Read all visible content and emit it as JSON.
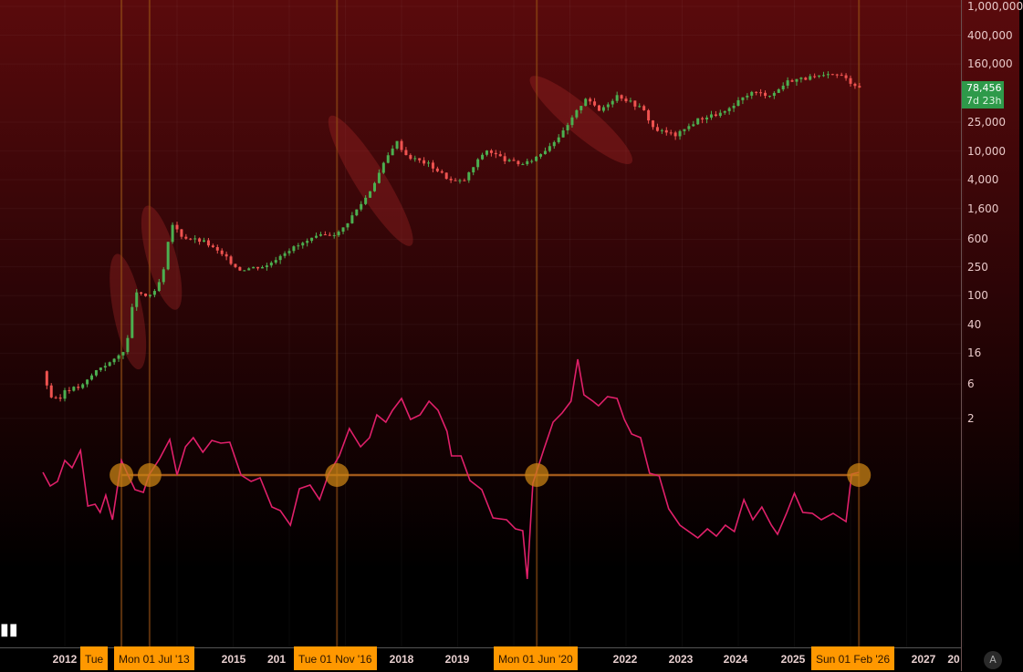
{
  "price_axis": {
    "ticks": [
      "1,000,000",
      "400,000",
      "160,000",
      "25,000",
      "10,000",
      "4,000",
      "1,600",
      "600",
      "250",
      "100",
      "40",
      "16",
      "6",
      "2"
    ],
    "tick_values": [
      1000000,
      400000,
      160000,
      25000,
      10000,
      4000,
      1600,
      600,
      250,
      100,
      40,
      16,
      6,
      2
    ]
  },
  "last_price": {
    "value": "78,456",
    "countdown": "7d 23h",
    "color": "#2e9a4a"
  },
  "time_axis": {
    "years": [
      {
        "label": "2012",
        "year": 2012
      },
      {
        "label": "2015",
        "year": 2015
      },
      {
        "label": "201",
        "year": 2016.85
      },
      {
        "label": "2018",
        "year": 2018
      },
      {
        "label": "2019",
        "year": 2019
      },
      {
        "label": "2022",
        "year": 2022
      },
      {
        "label": "2023",
        "year": 2023
      },
      {
        "label": "2024",
        "year": 2024
      },
      {
        "label": "2025",
        "year": 2025
      },
      {
        "label": "2027",
        "year": 2027
      },
      {
        "label": "20",
        "year": 2028
      }
    ],
    "markers": [
      {
        "label": "Tue",
        "year": 2013.01
      },
      {
        "label": "Mon 01 Jul '13",
        "year": 2013.5
      },
      {
        "label": "Tue 01 Nov '16",
        "year": 2016.84
      },
      {
        "label": "Mon 01 Jun '20",
        "year": 2020.41
      },
      {
        "label": "Sun 01 Feb '26",
        "year": 2026.08
      }
    ]
  },
  "auto_button": "A",
  "logo": "17",
  "chart_data": {
    "type": "candlestick+line",
    "title": "",
    "yscale": "log",
    "ylim": [
      1.3,
      1000000
    ],
    "xlim": [
      2011.3,
      2028.4
    ],
    "price_path": [
      [
        2011.6,
        9
      ],
      [
        2011.75,
        4
      ],
      [
        2011.9,
        3.5
      ],
      [
        2012.0,
        5
      ],
      [
        2012.3,
        5.5
      ],
      [
        2012.6,
        10
      ],
      [
        2012.9,
        13
      ],
      [
        2013.1,
        20
      ],
      [
        2013.25,
        120
      ],
      [
        2013.4,
        95
      ],
      [
        2013.6,
        110
      ],
      [
        2013.75,
        200
      ],
      [
        2013.9,
        1000
      ],
      [
        2014.1,
        650
      ],
      [
        2014.5,
        550
      ],
      [
        2014.9,
        320
      ],
      [
        2015.1,
        230
      ],
      [
        2015.6,
        260
      ],
      [
        2015.9,
        400
      ],
      [
        2016.5,
        650
      ],
      [
        2016.9,
        750
      ],
      [
        2017.4,
        2500
      ],
      [
        2017.9,
        14000
      ],
      [
        2018.1,
        8500
      ],
      [
        2018.5,
        6500
      ],
      [
        2018.9,
        3800
      ],
      [
        2019.1,
        3800
      ],
      [
        2019.5,
        10500
      ],
      [
        2019.9,
        7200
      ],
      [
        2020.2,
        6500
      ],
      [
        2020.5,
        9500
      ],
      [
        2020.9,
        19000
      ],
      [
        2021.3,
        58000
      ],
      [
        2021.5,
        35000
      ],
      [
        2021.85,
        60000
      ],
      [
        2022.3,
        38000
      ],
      [
        2022.5,
        20000
      ],
      [
        2022.9,
        16500
      ],
      [
        2023.3,
        28000
      ],
      [
        2023.8,
        35000
      ],
      [
        2024.2,
        65000
      ],
      [
        2024.6,
        60000
      ],
      [
        2024.9,
        95000
      ],
      [
        2025.1,
        100000
      ],
      [
        2025.4,
        105000
      ],
      [
        2025.8,
        115000
      ],
      [
        2026.0,
        90000
      ],
      [
        2026.15,
        78456
      ]
    ],
    "oscillator": {
      "color": "#e0206a",
      "threshold": 0,
      "points": [
        [
          2011.61,
          3
        ],
        [
          2011.74,
          -12
        ],
        [
          2011.87,
          -7
        ],
        [
          2012.0,
          16
        ],
        [
          2012.13,
          8
        ],
        [
          2012.28,
          27
        ],
        [
          2012.41,
          -34
        ],
        [
          2012.54,
          -32
        ],
        [
          2012.63,
          -41
        ],
        [
          2012.73,
          -22
        ],
        [
          2012.85,
          -49
        ],
        [
          2013.01,
          16
        ],
        [
          2013.12,
          1
        ],
        [
          2013.25,
          -16
        ],
        [
          2013.4,
          -19
        ],
        [
          2013.5,
          0
        ],
        [
          2013.69,
          18
        ],
        [
          2013.87,
          39
        ],
        [
          2014.0,
          0
        ],
        [
          2014.15,
          31
        ],
        [
          2014.29,
          41
        ],
        [
          2014.46,
          25
        ],
        [
          2014.62,
          38
        ],
        [
          2014.78,
          35
        ],
        [
          2014.94,
          36
        ],
        [
          2015.14,
          0
        ],
        [
          2015.32,
          -7
        ],
        [
          2015.48,
          -3
        ],
        [
          2015.69,
          -35
        ],
        [
          2015.84,
          -39
        ],
        [
          2016.02,
          -55
        ],
        [
          2016.18,
          -15
        ],
        [
          2016.37,
          -11
        ],
        [
          2016.54,
          -27
        ],
        [
          2016.7,
          1
        ],
        [
          2016.89,
          21
        ],
        [
          2017.07,
          51
        ],
        [
          2017.27,
          31
        ],
        [
          2017.43,
          41
        ],
        [
          2017.56,
          66
        ],
        [
          2017.72,
          58
        ],
        [
          2017.84,
          71
        ],
        [
          2018.0,
          84
        ],
        [
          2018.16,
          61
        ],
        [
          2018.33,
          66
        ],
        [
          2018.49,
          81
        ],
        [
          2018.65,
          71
        ],
        [
          2018.81,
          48
        ],
        [
          2018.89,
          21
        ],
        [
          2019.06,
          21
        ],
        [
          2019.22,
          -6
        ],
        [
          2019.43,
          -16
        ],
        [
          2019.63,
          -47
        ],
        [
          2019.87,
          -49
        ],
        [
          2020.03,
          -59
        ],
        [
          2020.16,
          -61
        ],
        [
          2020.24,
          -114
        ],
        [
          2020.34,
          -9
        ],
        [
          2020.54,
          29
        ],
        [
          2020.7,
          58
        ],
        [
          2020.86,
          68
        ],
        [
          2021.02,
          81
        ],
        [
          2021.14,
          127
        ],
        [
          2021.25,
          88
        ],
        [
          2021.41,
          81
        ],
        [
          2021.51,
          76
        ],
        [
          2021.67,
          86
        ],
        [
          2021.84,
          84
        ],
        [
          2021.97,
          61
        ],
        [
          2022.1,
          45
        ],
        [
          2022.26,
          41
        ],
        [
          2022.42,
          2
        ],
        [
          2022.59,
          -1
        ],
        [
          2022.76,
          -37
        ],
        [
          2022.96,
          -55
        ],
        [
          2023.12,
          -62
        ],
        [
          2023.28,
          -69
        ],
        [
          2023.45,
          -59
        ],
        [
          2023.61,
          -67
        ],
        [
          2023.77,
          -55
        ],
        [
          2023.93,
          -62
        ],
        [
          2024.1,
          -27
        ],
        [
          2024.26,
          -49
        ],
        [
          2024.42,
          -35
        ],
        [
          2024.59,
          -55
        ],
        [
          2024.7,
          -65
        ],
        [
          2024.86,
          -42
        ],
        [
          2025.0,
          -20
        ],
        [
          2025.15,
          -41
        ],
        [
          2025.32,
          -42
        ],
        [
          2025.48,
          -49
        ],
        [
          2025.69,
          -42
        ],
        [
          2025.92,
          -51
        ],
        [
          2026.02,
          1
        ],
        [
          2026.15,
          3
        ]
      ]
    },
    "signal_years": [
      2013.01,
      2013.51,
      2016.85,
      2020.41,
      2026.15
    ],
    "highlight_ranges": [
      [
        [
          2012.95,
          2013.3
        ],
        [
          12,
          300
        ]
      ],
      [
        [
          2013.5,
          2013.95
        ],
        [
          80,
          1400
        ]
      ],
      [
        [
          2016.8,
          2018.1
        ],
        [
          600,
          25000
        ]
      ],
      [
        [
          2020.4,
          2022.0
        ],
        [
          8000,
          90000
        ]
      ]
    ]
  }
}
